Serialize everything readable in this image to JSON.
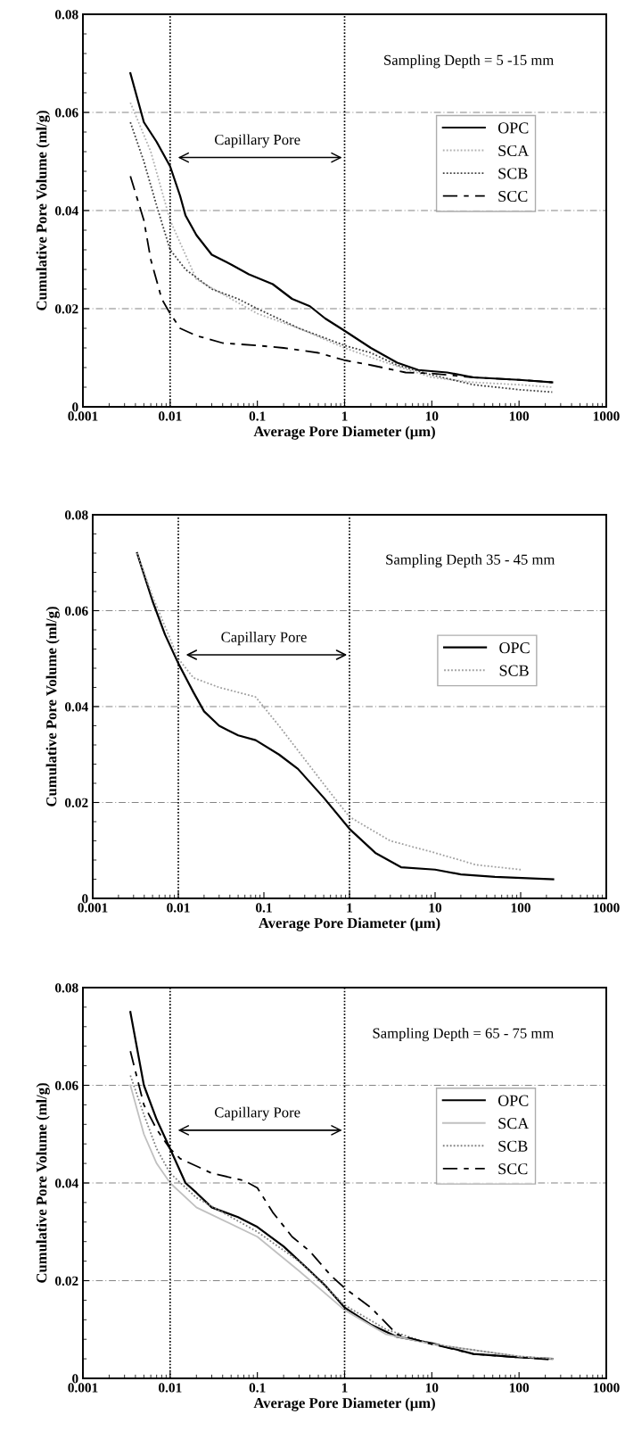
{
  "chart_data": [
    {
      "type": "line",
      "xlabel": "Average Pore Diameter (μm)",
      "ylabel": "Cumulative Pore Volume (ml/g)",
      "log": "x",
      "xlim": [
        0.001,
        1000
      ],
      "ylim": [
        0,
        0.08
      ],
      "xticks": [
        0.001,
        0.01,
        0.1,
        1,
        10,
        100,
        1000
      ],
      "yticks": [
        0,
        0.02,
        0.04,
        0.06,
        0.08
      ],
      "grid": "y",
      "legend": "right",
      "annotations": [
        "Sampling Depth = 5 -15 mm",
        "Capillary Pore"
      ],
      "ref_lines": [
        {
          "axis": "x",
          "value": 0.01,
          "color": "#000000",
          "line_style": "dotted"
        },
        {
          "axis": "x",
          "value": 1,
          "color": "#000000",
          "line_style": "dotted"
        }
      ],
      "series": [
        {
          "name": "OPC",
          "color": "#000000",
          "line_style": "solid",
          "x": [
            0.0035,
            0.005,
            0.007,
            0.01,
            0.013,
            0.015,
            0.02,
            0.03,
            0.05,
            0.08,
            0.15,
            0.25,
            0.4,
            0.6,
            1,
            2,
            4,
            7,
            15,
            30,
            100,
            240
          ],
          "values": [
            0.068,
            0.058,
            0.054,
            0.049,
            0.043,
            0.039,
            0.035,
            0.031,
            0.029,
            0.027,
            0.025,
            0.022,
            0.0205,
            0.018,
            0.0155,
            0.012,
            0.009,
            0.0075,
            0.007,
            0.006,
            0.0055,
            0.005
          ]
        },
        {
          "name": "SCA",
          "color": "#b0b0b0",
          "line_style": "dotted",
          "x": [
            0.0035,
            0.006,
            0.01,
            0.02,
            0.05,
            0.1,
            0.3,
            1,
            3,
            10,
            30,
            100,
            240
          ],
          "values": [
            0.062,
            0.052,
            0.038,
            0.026,
            0.022,
            0.019,
            0.016,
            0.012,
            0.009,
            0.006,
            0.005,
            0.0045,
            0.004
          ]
        },
        {
          "name": "SCB",
          "color": "#404040",
          "line_style": "dotted",
          "x": [
            0.0035,
            0.005,
            0.007,
            0.01,
            0.015,
            0.03,
            0.06,
            0.1,
            0.3,
            0.6,
            1,
            2,
            4,
            10,
            30,
            100,
            240
          ],
          "values": [
            0.058,
            0.05,
            0.041,
            0.032,
            0.028,
            0.024,
            0.022,
            0.02,
            0.016,
            0.014,
            0.0125,
            0.011,
            0.0085,
            0.0065,
            0.0045,
            0.0035,
            0.003
          ]
        },
        {
          "name": "SCC",
          "color": "#000000",
          "line_style": "dashed",
          "x": [
            0.0035,
            0.005,
            0.006,
            0.008,
            0.01,
            0.013,
            0.02,
            0.04,
            0.1,
            0.2,
            0.5,
            1,
            2,
            5,
            10,
            30,
            100,
            240
          ],
          "values": [
            0.047,
            0.038,
            0.03,
            0.022,
            0.019,
            0.016,
            0.0145,
            0.013,
            0.0125,
            0.012,
            0.011,
            0.0095,
            0.0085,
            0.007,
            0.0068,
            0.006,
            0.0055,
            0.005
          ]
        }
      ]
    },
    {
      "type": "line",
      "xlabel": "Average Pore Diameter (μm)",
      "ylabel": "Cumulative Pore Volume (ml/g)",
      "log": "x",
      "xlim": [
        0.001,
        1000
      ],
      "ylim": [
        0,
        0.08
      ],
      "xticks": [
        0.001,
        0.01,
        0.1,
        1,
        10,
        100,
        1000
      ],
      "yticks": [
        0,
        0.02,
        0.04,
        0.06,
        0.08
      ],
      "grid": "y",
      "legend": "right",
      "annotations": [
        "Sampling Depth 35 - 45 mm",
        "Capillary Pore"
      ],
      "ref_lines": [
        {
          "axis": "x",
          "value": 0.01,
          "color": "#000000",
          "line_style": "dotted"
        },
        {
          "axis": "x",
          "value": 1,
          "color": "#000000",
          "line_style": "dotted"
        }
      ],
      "series": [
        {
          "name": "OPC",
          "color": "#000000",
          "line_style": "solid",
          "x": [
            0.0033,
            0.005,
            0.007,
            0.01,
            0.015,
            0.02,
            0.03,
            0.05,
            0.08,
            0.15,
            0.25,
            0.5,
            1,
            2,
            4,
            10,
            20,
            50,
            240
          ],
          "values": [
            0.072,
            0.062,
            0.055,
            0.049,
            0.043,
            0.039,
            0.036,
            0.034,
            0.033,
            0.03,
            0.027,
            0.021,
            0.0145,
            0.0095,
            0.0065,
            0.006,
            0.005,
            0.0045,
            0.004
          ]
        },
        {
          "name": "SCB",
          "color": "#a0a0a0",
          "line_style": "dotted",
          "x": [
            0.0033,
            0.005,
            0.01,
            0.015,
            0.03,
            0.08,
            0.15,
            0.3,
            0.6,
            1,
            3,
            10,
            30,
            100
          ],
          "values": [
            0.072,
            0.063,
            0.05,
            0.046,
            0.044,
            0.042,
            0.036,
            0.029,
            0.022,
            0.017,
            0.012,
            0.0095,
            0.007,
            0.006
          ]
        }
      ]
    },
    {
      "type": "line",
      "xlabel": "Average Pore Diameter (μm)",
      "ylabel": "Cumulative Pore Volume (ml/g)",
      "log": "x",
      "xlim": [
        0.001,
        1000
      ],
      "ylim": [
        0,
        0.08
      ],
      "xticks": [
        0.001,
        0.01,
        0.1,
        1,
        10,
        100,
        1000
      ],
      "yticks": [
        0,
        0.02,
        0.04,
        0.06,
        0.08
      ],
      "grid": "y",
      "legend": "right",
      "annotations": [
        "Sampling Depth = 65 - 75 mm",
        "Capillary Pore"
      ],
      "ref_lines": [
        {
          "axis": "x",
          "value": 0.01,
          "color": "#000000",
          "line_style": "dotted"
        },
        {
          "axis": "x",
          "value": 1,
          "color": "#000000",
          "line_style": "dotted"
        }
      ],
      "series": [
        {
          "name": "OPC",
          "color": "#000000",
          "line_style": "solid",
          "x": [
            0.0035,
            0.005,
            0.007,
            0.01,
            0.015,
            0.02,
            0.03,
            0.06,
            0.1,
            0.2,
            0.4,
            0.6,
            1,
            2,
            4,
            10,
            30,
            100,
            240
          ],
          "values": [
            0.075,
            0.06,
            0.053,
            0.047,
            0.04,
            0.038,
            0.035,
            0.033,
            0.031,
            0.027,
            0.022,
            0.019,
            0.0145,
            0.011,
            0.0085,
            0.0072,
            0.005,
            0.0043,
            0.004
          ]
        },
        {
          "name": "SCA",
          "color": "#c0c0c0",
          "line_style": "solid",
          "x": [
            0.0035,
            0.005,
            0.007,
            0.01,
            0.02,
            0.1,
            0.3,
            1,
            3,
            10,
            100,
            240
          ],
          "values": [
            0.06,
            0.05,
            0.044,
            0.04,
            0.035,
            0.029,
            0.022,
            0.014,
            0.009,
            0.007,
            0.0045,
            0.004
          ]
        },
        {
          "name": "SCB",
          "color": "#808080",
          "line_style": "dotted",
          "x": [
            0.0035,
            0.005,
            0.007,
            0.01,
            0.02,
            0.1,
            0.3,
            1,
            3,
            10,
            100,
            240
          ],
          "values": [
            0.062,
            0.054,
            0.047,
            0.042,
            0.037,
            0.03,
            0.024,
            0.015,
            0.01,
            0.007,
            0.0045,
            0.004
          ]
        },
        {
          "name": "SCC",
          "color": "#000000",
          "line_style": "dashed",
          "x": [
            0.0035,
            0.005,
            0.007,
            0.01,
            0.013,
            0.03,
            0.07,
            0.1,
            0.15,
            0.25,
            0.4,
            0.7,
            1,
            2,
            4,
            10,
            30,
            100,
            240
          ],
          "values": [
            0.067,
            0.056,
            0.051,
            0.047,
            0.045,
            0.042,
            0.0405,
            0.039,
            0.034,
            0.029,
            0.026,
            0.021,
            0.0185,
            0.0145,
            0.009,
            0.007,
            0.005,
            0.0043,
            0.0038
          ]
        }
      ]
    }
  ]
}
